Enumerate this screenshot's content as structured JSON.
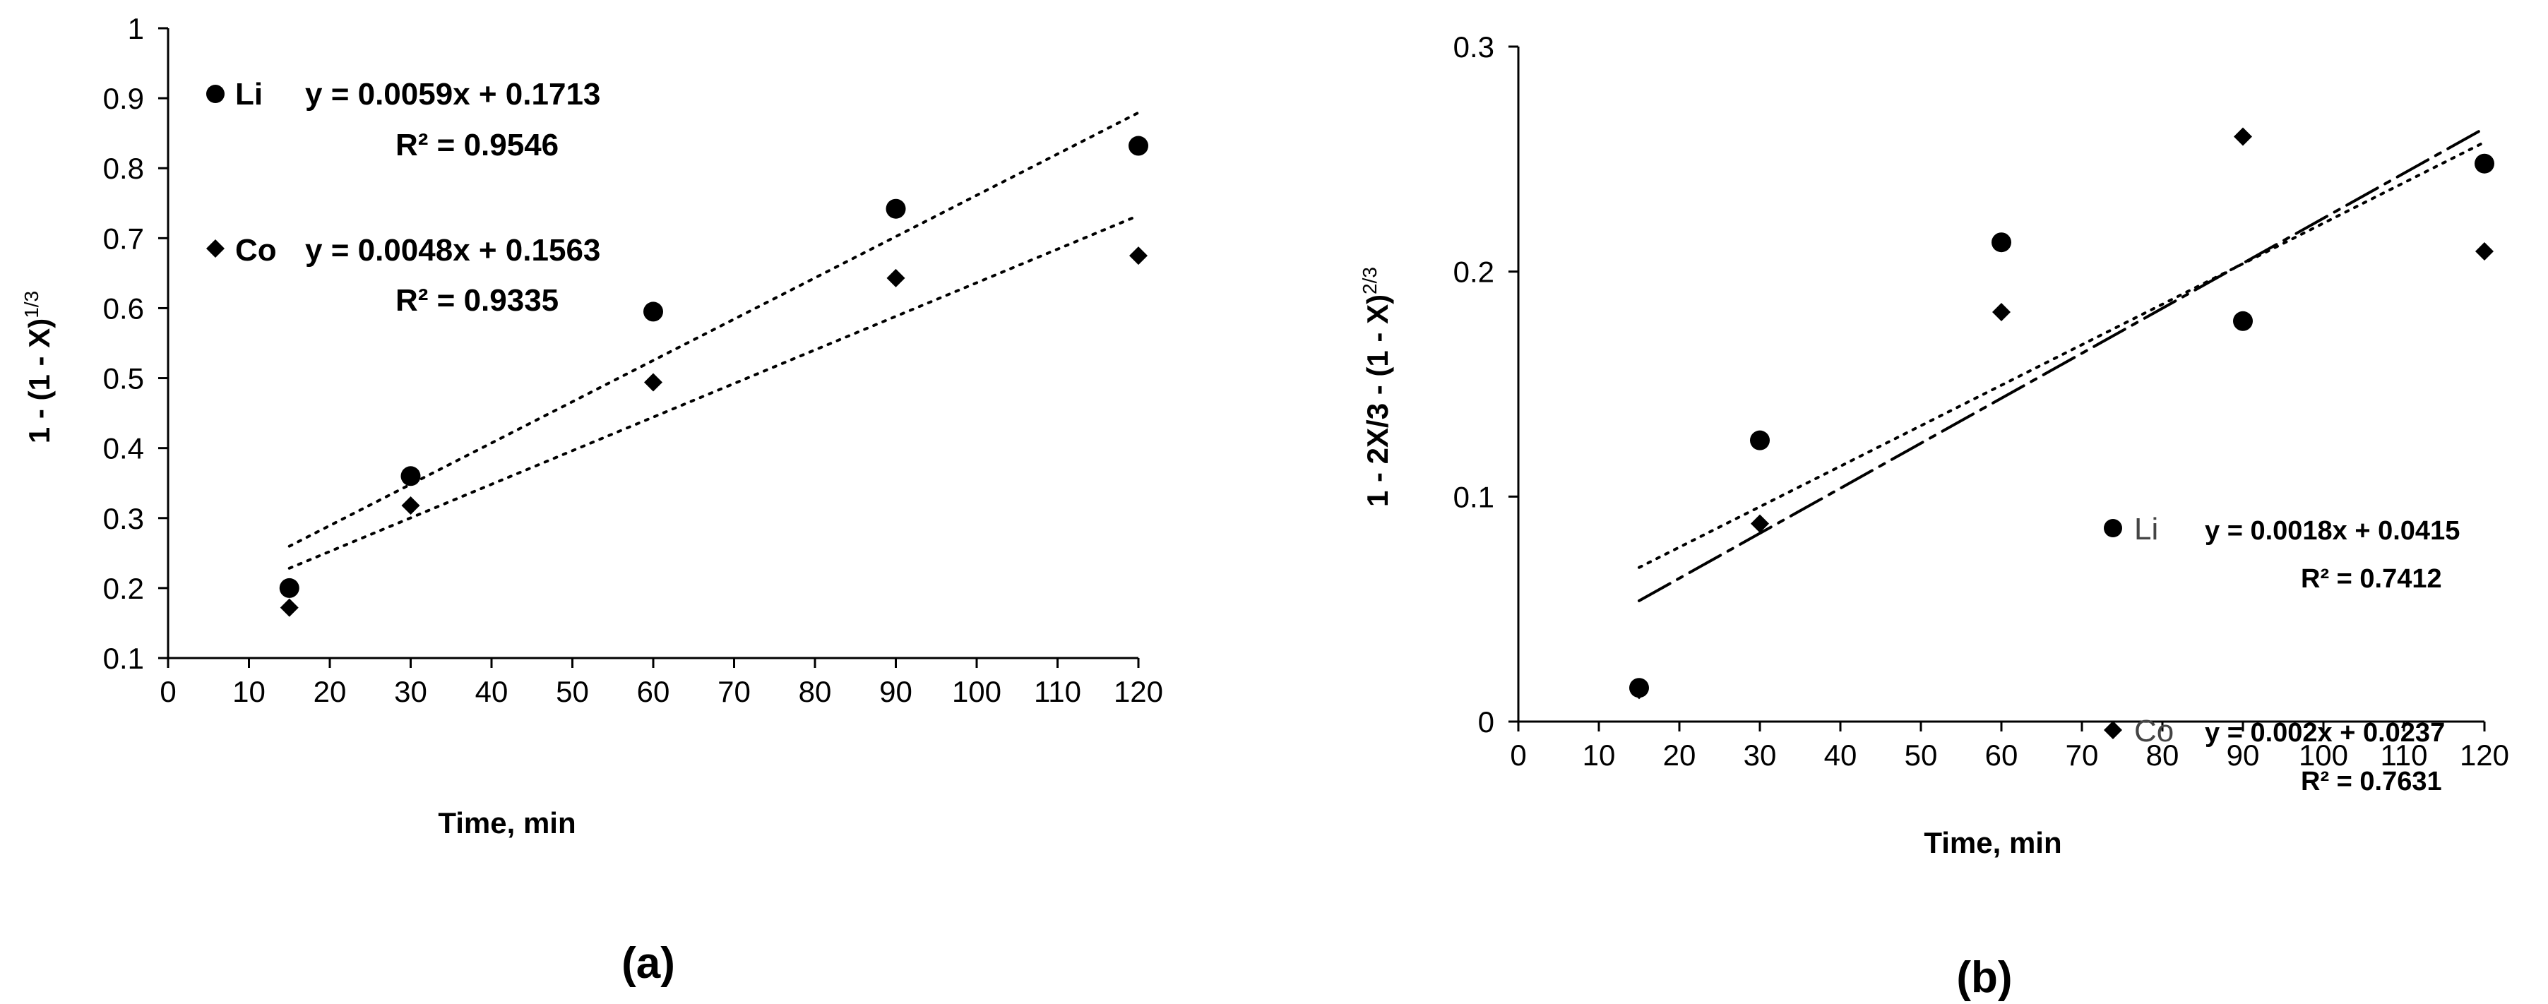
{
  "chart_data": [
    {
      "type": "scatter",
      "panel_label": "(a)",
      "xlabel": "Time, min",
      "ylabel_main": "1 - (1 - X)",
      "ylabel_sup": "1/3",
      "xlim": [
        0,
        120
      ],
      "ylim": [
        0.1,
        1
      ],
      "x_ticks": [
        0,
        10,
        20,
        30,
        40,
        50,
        60,
        70,
        80,
        90,
        100,
        110,
        120
      ],
      "y_ticks": [
        0.1,
        0.2,
        0.3,
        0.4,
        0.5,
        0.6,
        0.7,
        0.8,
        0.9,
        1
      ],
      "y_tick_labels": [
        "0.1",
        "0.2",
        "0.3",
        "0.4",
        "0.5",
        "0.6",
        "0.7",
        "0.8",
        "0.9",
        "1"
      ],
      "series": [
        {
          "name": "Li",
          "marker": "circle",
          "x": [
            15,
            30,
            60,
            90,
            120
          ],
          "y": [
            0.2,
            0.36,
            0.595,
            0.742,
            0.832
          ],
          "trend": {
            "slope": 0.0059,
            "intercept": 0.1713,
            "x_range": [
              15,
              120
            ]
          },
          "equation": "y = 0.0059x + 0.1713",
          "r2": "R² = 0.9546"
        },
        {
          "name": "Co",
          "marker": "diamond",
          "x": [
            15,
            30,
            60,
            90,
            120
          ],
          "y": [
            0.172,
            0.318,
            0.494,
            0.643,
            0.675
          ],
          "trend": {
            "slope": 0.0048,
            "intercept": 0.1563,
            "x_range": [
              15,
              120
            ]
          },
          "equation": "y = 0.0048x + 0.1563",
          "r2": "R² = 0.9335"
        }
      ]
    },
    {
      "type": "scatter",
      "panel_label": "(b)",
      "xlabel": "Time, min",
      "ylabel_main": "1 - 2X/3 - (1 - X)",
      "ylabel_sup": "2/3",
      "xlim": [
        0,
        120
      ],
      "ylim": [
        0,
        0.3
      ],
      "x_ticks": [
        0,
        10,
        20,
        30,
        40,
        50,
        60,
        70,
        80,
        90,
        100,
        110,
        120
      ],
      "y_ticks": [
        0,
        0.1,
        0.2,
        0.3
      ],
      "y_tick_labels": [
        "0",
        "0.1",
        "0.2",
        "0.3"
      ],
      "series": [
        {
          "name": "Li",
          "marker": "circle",
          "x": [
            15,
            30,
            60,
            90,
            120
          ],
          "y": [
            0.015,
            0.125,
            0.213,
            0.178,
            0.248
          ],
          "trend": {
            "slope": 0.0018,
            "intercept": 0.0415,
            "x_range": [
              15,
              120
            ]
          },
          "equation": "y = 0.0018x + 0.0415",
          "r2": "R² = 0.7412"
        },
        {
          "name": "Co",
          "marker": "diamond",
          "x": [
            15,
            30,
            60,
            90,
            120
          ],
          "y": [
            0.014,
            0.088,
            0.182,
            0.26,
            0.209
          ],
          "trend": {
            "slope": 0.002,
            "intercept": 0.0237,
            "x_range": [
              15,
              120
            ]
          },
          "equation": "y = 0.002x + 0.0237",
          "r2": "R² = 0.7631"
        }
      ]
    }
  ]
}
